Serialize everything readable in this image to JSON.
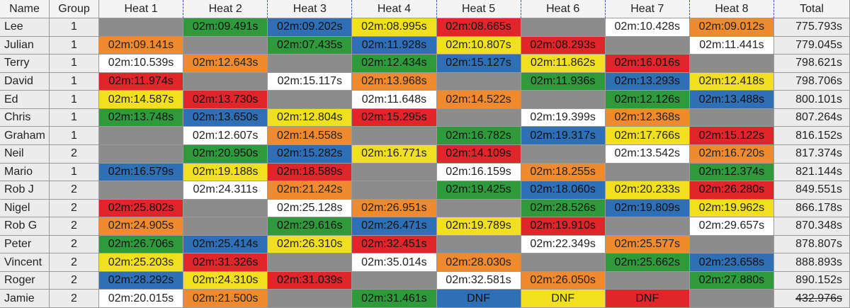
{
  "header": [
    "Name",
    "Group",
    "Heat 1",
    "Heat 2",
    "Heat 3",
    "Heat 4",
    "Heat 5",
    "Heat 6",
    "Heat 7",
    "Heat 8",
    "Total"
  ],
  "rows": [
    {
      "name": "Lee",
      "group": 1,
      "heats": [
        {
          "color": "#8c8c8c"
        },
        {
          "time": "02m:09.491s",
          "color": "#2e9a3c"
        },
        {
          "time": "02m:09.202s",
          "color": "#2f6fb5"
        },
        {
          "time": "02m:08.995s",
          "color": "#f0e020"
        },
        {
          "time": "02m:08.665s",
          "color": "#e0262b"
        },
        {
          "color": "#8c8c8c"
        },
        {
          "time": "02m:10.428s",
          "color": "#ffffff"
        },
        {
          "time": "02m:09.012s",
          "color": "#f08a2e"
        }
      ],
      "total": "775.793s"
    },
    {
      "name": "Julian",
      "group": 1,
      "heats": [
        {
          "time": "02m:09.141s",
          "color": "#f08a2e"
        },
        {
          "color": "#8c8c8c"
        },
        {
          "time": "02m:07.435s",
          "color": "#2e9a3c"
        },
        {
          "time": "02m:11.928s",
          "color": "#2f6fb5"
        },
        {
          "time": "02m:10.807s",
          "color": "#f0e020"
        },
        {
          "time": "02m:08.293s",
          "color": "#e0262b"
        },
        {
          "color": "#8c8c8c"
        },
        {
          "time": "02m:11.441s",
          "color": "#ffffff"
        }
      ],
      "total": "779.045s"
    },
    {
      "name": "Terry",
      "group": 1,
      "heats": [
        {
          "time": "02m:10.539s",
          "color": "#ffffff"
        },
        {
          "time": "02m:12.643s",
          "color": "#f08a2e"
        },
        {
          "color": "#8c8c8c"
        },
        {
          "time": "02m:12.434s",
          "color": "#2e9a3c"
        },
        {
          "time": "02m:15.127s",
          "color": "#2f6fb5"
        },
        {
          "time": "02m:11.862s",
          "color": "#f0e020"
        },
        {
          "time": "02m:16.016s",
          "color": "#e0262b"
        },
        {
          "color": "#8c8c8c"
        }
      ],
      "total": "798.621s"
    },
    {
      "name": "David",
      "group": 1,
      "heats": [
        {
          "time": "02m:11.974s",
          "color": "#e0262b"
        },
        {
          "color": "#8c8c8c"
        },
        {
          "time": "02m:15.117s",
          "color": "#ffffff"
        },
        {
          "time": "02m:13.968s",
          "color": "#f08a2e"
        },
        {
          "color": "#8c8c8c"
        },
        {
          "time": "02m:11.936s",
          "color": "#2e9a3c"
        },
        {
          "time": "02m:13.293s",
          "color": "#2f6fb5"
        },
        {
          "time": "02m:12.418s",
          "color": "#f0e020"
        }
      ],
      "total": "798.706s"
    },
    {
      "name": "Ed",
      "group": 1,
      "heats": [
        {
          "time": "02m:14.587s",
          "color": "#f0e020"
        },
        {
          "time": "02m:13.730s",
          "color": "#e0262b"
        },
        {
          "color": "#8c8c8c"
        },
        {
          "time": "02m:11.648s",
          "color": "#ffffff"
        },
        {
          "time": "02m:14.522s",
          "color": "#f08a2e"
        },
        {
          "color": "#8c8c8c"
        },
        {
          "time": "02m:12.126s",
          "color": "#2e9a3c"
        },
        {
          "time": "02m:13.488s",
          "color": "#2f6fb5"
        }
      ],
      "total": "800.101s"
    },
    {
      "name": "Chris",
      "group": 1,
      "heats": [
        {
          "time": "02m:13.748s",
          "color": "#2e9a3c"
        },
        {
          "time": "02m:13.650s",
          "color": "#2f6fb5"
        },
        {
          "time": "02m:12.804s",
          "color": "#f0e020"
        },
        {
          "time": "02m:15.295s",
          "color": "#e0262b"
        },
        {
          "color": "#8c8c8c"
        },
        {
          "time": "02m:19.399s",
          "color": "#ffffff"
        },
        {
          "time": "02m:12.368s",
          "color": "#f08a2e"
        },
        {
          "color": "#8c8c8c"
        }
      ],
      "total": "807.264s"
    },
    {
      "name": "Graham",
      "group": 1,
      "heats": [
        {
          "color": "#8c8c8c"
        },
        {
          "time": "02m:12.607s",
          "color": "#ffffff"
        },
        {
          "time": "02m:14.558s",
          "color": "#f08a2e"
        },
        {
          "color": "#8c8c8c"
        },
        {
          "time": "02m:16.782s",
          "color": "#2e9a3c"
        },
        {
          "time": "02m:19.317s",
          "color": "#2f6fb5"
        },
        {
          "time": "02m:17.766s",
          "color": "#f0e020"
        },
        {
          "time": "02m:15.122s",
          "color": "#e0262b"
        }
      ],
      "total": "816.152s"
    },
    {
      "name": "Neil",
      "group": 2,
      "heats": [
        {
          "color": "#8c8c8c"
        },
        {
          "time": "02m:20.950s",
          "color": "#2e9a3c"
        },
        {
          "time": "02m:15.282s",
          "color": "#2f6fb5"
        },
        {
          "time": "02m:16.771s",
          "color": "#f0e020"
        },
        {
          "time": "02m:14.109s",
          "color": "#e0262b"
        },
        {
          "color": "#8c8c8c"
        },
        {
          "time": "02m:13.542s",
          "color": "#ffffff"
        },
        {
          "time": "02m:16.720s",
          "color": "#f08a2e"
        }
      ],
      "total": "817.374s"
    },
    {
      "name": "Mario",
      "group": 1,
      "heats": [
        {
          "time": "02m:16.579s",
          "color": "#2f6fb5"
        },
        {
          "time": "02m:19.188s",
          "color": "#f0e020"
        },
        {
          "time": "02m:18.589s",
          "color": "#e0262b"
        },
        {
          "color": "#8c8c8c"
        },
        {
          "time": "02m:16.159s",
          "color": "#ffffff"
        },
        {
          "time": "02m:18.255s",
          "color": "#f08a2e"
        },
        {
          "color": "#8c8c8c"
        },
        {
          "time": "02m:12.374s",
          "color": "#2e9a3c"
        }
      ],
      "total": "821.144s"
    },
    {
      "name": "Rob J",
      "group": 2,
      "heats": [
        {
          "color": "#8c8c8c"
        },
        {
          "time": "02m:24.311s",
          "color": "#ffffff"
        },
        {
          "time": "02m:21.242s",
          "color": "#f08a2e"
        },
        {
          "color": "#8c8c8c"
        },
        {
          "time": "02m:19.425s",
          "color": "#2e9a3c"
        },
        {
          "time": "02m:18.060s",
          "color": "#2f6fb5"
        },
        {
          "time": "02m:20.233s",
          "color": "#f0e020"
        },
        {
          "time": "02m:26.280s",
          "color": "#e0262b"
        }
      ],
      "total": "849.551s"
    },
    {
      "name": "Nigel",
      "group": 2,
      "heats": [
        {
          "time": "02m:25.802s",
          "color": "#e0262b"
        },
        {
          "color": "#8c8c8c"
        },
        {
          "time": "02m:25.128s",
          "color": "#ffffff"
        },
        {
          "time": "02m:26.951s",
          "color": "#f08a2e"
        },
        {
          "color": "#8c8c8c"
        },
        {
          "time": "02m:28.526s",
          "color": "#2e9a3c"
        },
        {
          "time": "02m:19.809s",
          "color": "#2f6fb5"
        },
        {
          "time": "02m:19.962s",
          "color": "#f0e020"
        }
      ],
      "total": "866.178s"
    },
    {
      "name": "Rob G",
      "group": 2,
      "heats": [
        {
          "time": "02m:24.905s",
          "color": "#f08a2e"
        },
        {
          "color": "#8c8c8c"
        },
        {
          "time": "02m:29.616s",
          "color": "#2e9a3c"
        },
        {
          "time": "02m:26.471s",
          "color": "#2f6fb5"
        },
        {
          "time": "02m:19.789s",
          "color": "#f0e020"
        },
        {
          "time": "02m:19.910s",
          "color": "#e0262b"
        },
        {
          "color": "#8c8c8c"
        },
        {
          "time": "02m:29.657s",
          "color": "#ffffff"
        }
      ],
      "total": "870.348s"
    },
    {
      "name": "Peter",
      "group": 2,
      "heats": [
        {
          "time": "02m:26.706s",
          "color": "#2e9a3c"
        },
        {
          "time": "02m:25.414s",
          "color": "#2f6fb5"
        },
        {
          "time": "02m:26.310s",
          "color": "#f0e020"
        },
        {
          "time": "02m:32.451s",
          "color": "#e0262b"
        },
        {
          "color": "#8c8c8c"
        },
        {
          "time": "02m:22.349s",
          "color": "#ffffff"
        },
        {
          "time": "02m:25.577s",
          "color": "#f08a2e"
        },
        {
          "color": "#8c8c8c"
        }
      ],
      "total": "878.807s"
    },
    {
      "name": "Vincent",
      "group": 2,
      "heats": [
        {
          "time": "02m:25.203s",
          "color": "#f0e020"
        },
        {
          "time": "02m:31.326s",
          "color": "#e0262b"
        },
        {
          "color": "#8c8c8c"
        },
        {
          "time": "02m:35.014s",
          "color": "#ffffff"
        },
        {
          "time": "02m:28.030s",
          "color": "#f08a2e"
        },
        {
          "color": "#8c8c8c"
        },
        {
          "time": "02m:25.662s",
          "color": "#2e9a3c"
        },
        {
          "time": "02m:23.658s",
          "color": "#2f6fb5"
        }
      ],
      "total": "888.893s"
    },
    {
      "name": "Roger",
      "group": 2,
      "heats": [
        {
          "time": "02m:28.292s",
          "color": "#2f6fb5"
        },
        {
          "time": "02m:24.310s",
          "color": "#f0e020"
        },
        {
          "time": "02m:31.039s",
          "color": "#e0262b"
        },
        {
          "color": "#8c8c8c"
        },
        {
          "time": "02m:32.581s",
          "color": "#ffffff"
        },
        {
          "time": "02m:26.050s",
          "color": "#f08a2e"
        },
        {
          "color": "#8c8c8c"
        },
        {
          "time": "02m:27.880s",
          "color": "#2e9a3c"
        }
      ],
      "total": "890.152s"
    },
    {
      "name": "Jamie",
      "group": 2,
      "heats": [
        {
          "time": "02m:20.015s",
          "color": "#ffffff"
        },
        {
          "time": "02m:21.500s",
          "color": "#f08a2e"
        },
        {
          "color": "#8c8c8c"
        },
        {
          "time": "02m:31.461s",
          "color": "#2e9a3c"
        },
        {
          "time": "DNF",
          "color": "#2f6fb5"
        },
        {
          "time": "DNF",
          "color": "#f0e020"
        },
        {
          "time": "DNF",
          "color": "#e0262b"
        },
        {
          "color": "#8c8c8c"
        }
      ],
      "total": "432.976s",
      "struck": true
    }
  ]
}
